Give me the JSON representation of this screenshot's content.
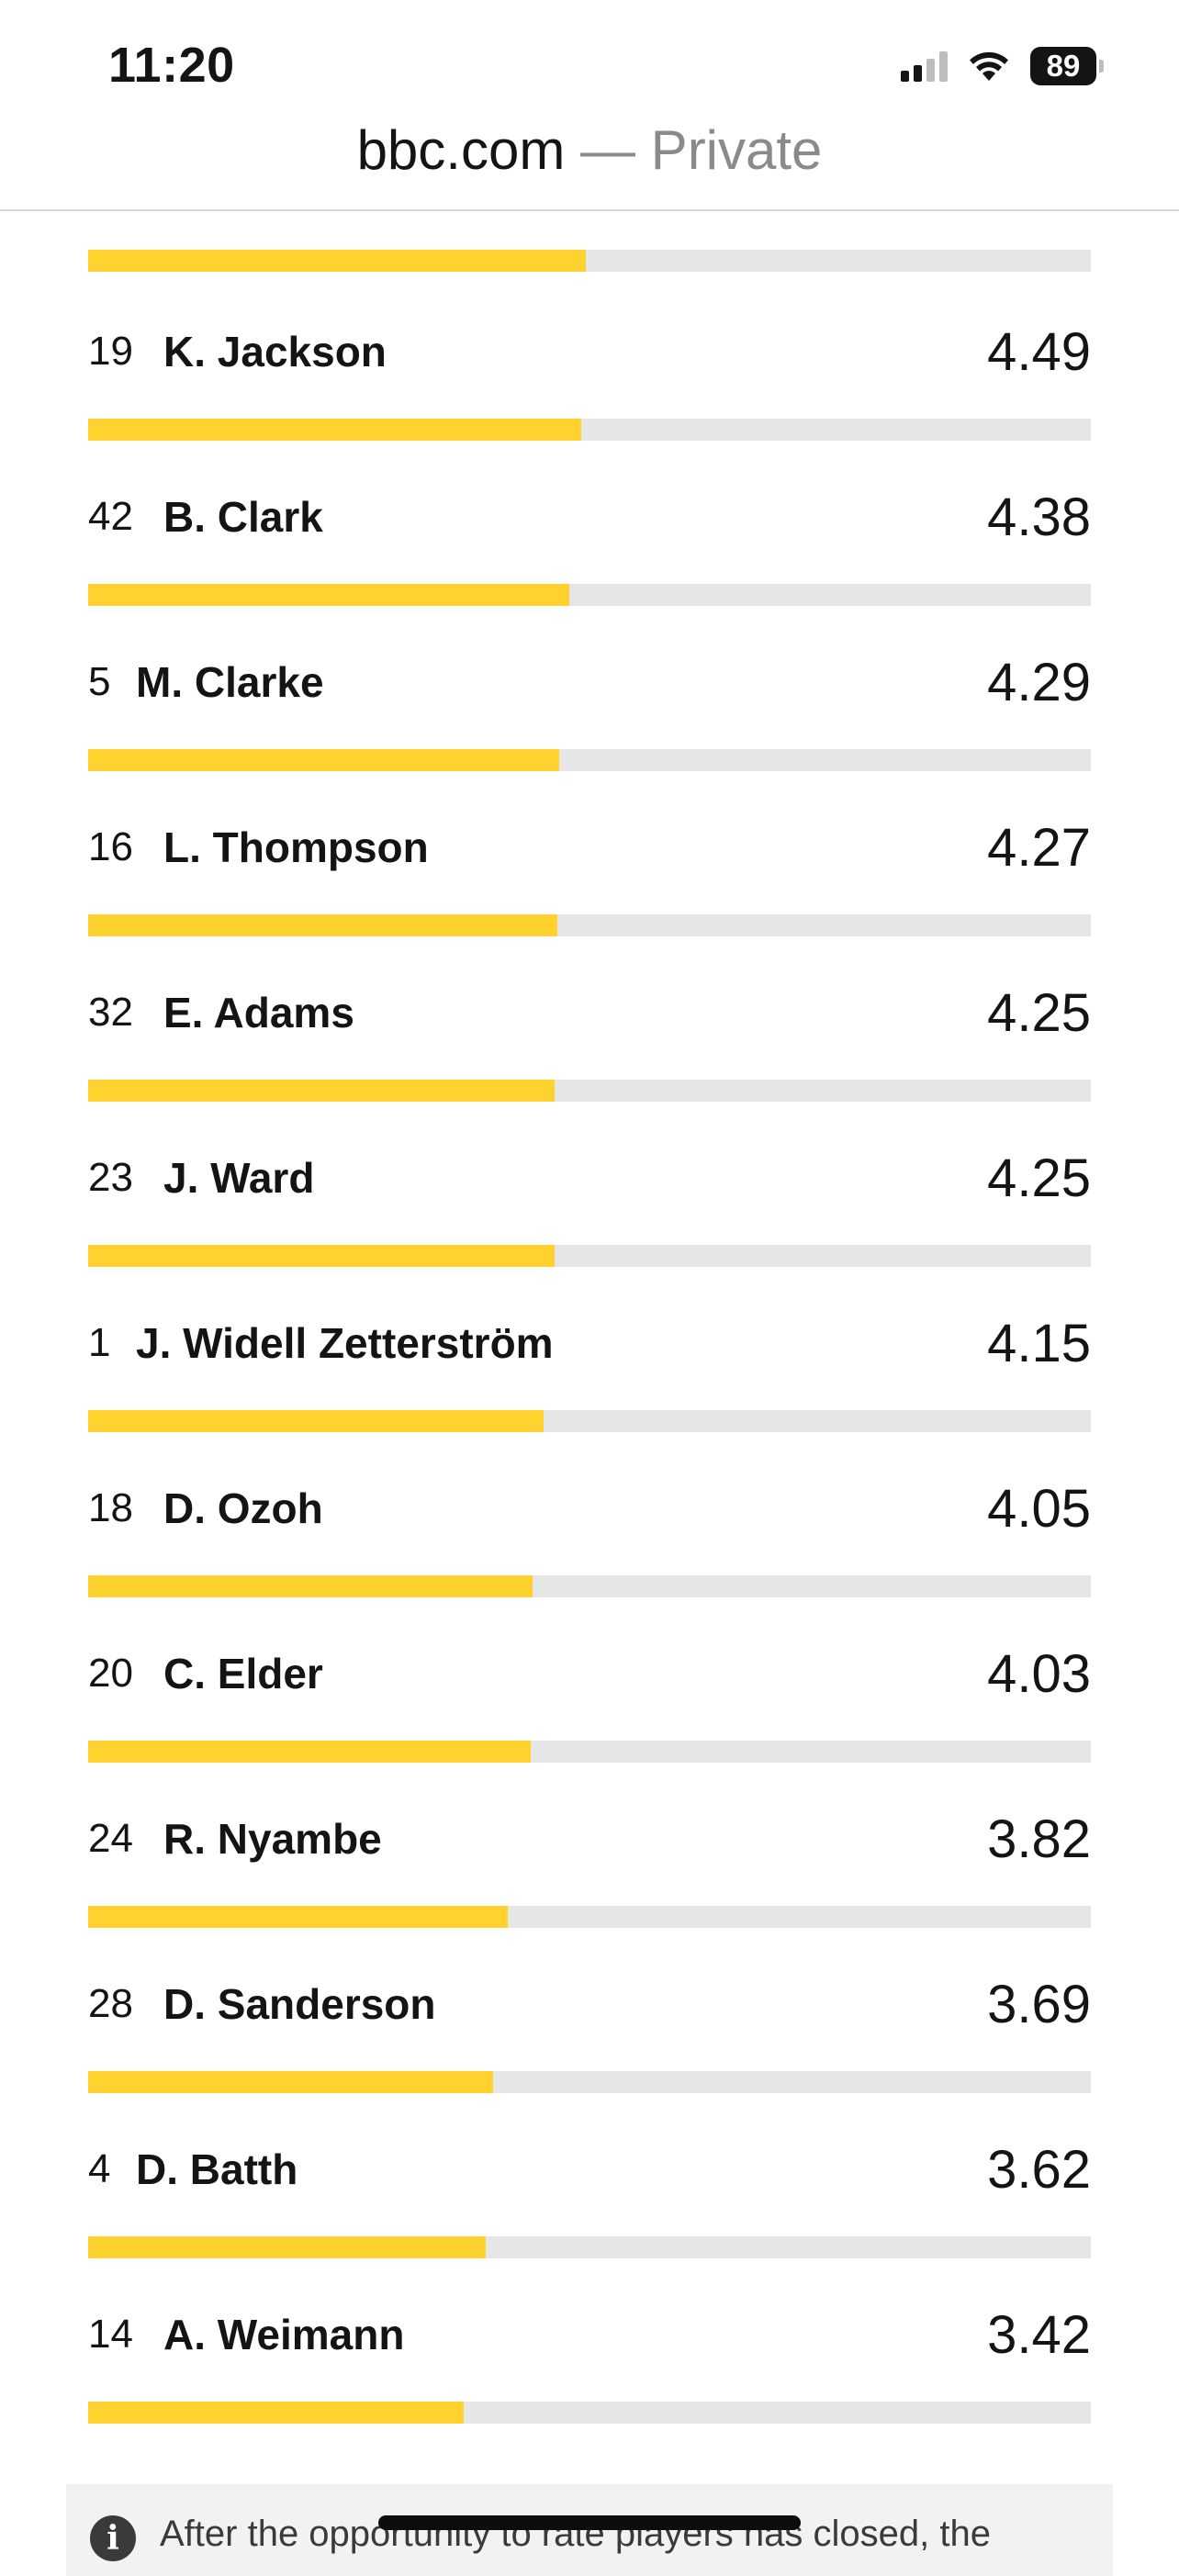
{
  "status_bar": {
    "time": "11:20",
    "battery": "89",
    "signal_icon": "cellular-signal-icon",
    "wifi_icon": "wifi-icon"
  },
  "address_bar": {
    "domain": "bbc.com",
    "separator": " — ",
    "mode": "Private"
  },
  "colors": {
    "bar_fill": "#ffd230",
    "bar_track": "#e6e6e6"
  },
  "rating_scale_max": 10,
  "partial_row": {
    "rating": 4.53
  },
  "players": [
    {
      "number": "19",
      "name": "K. Jackson",
      "rating": "4.49"
    },
    {
      "number": "42",
      "name": "B. Clark",
      "rating": "4.38"
    },
    {
      "number": "5",
      "name": "M. Clarke",
      "rating": "4.29"
    },
    {
      "number": "16",
      "name": "L. Thompson",
      "rating": "4.27"
    },
    {
      "number": "32",
      "name": "E. Adams",
      "rating": "4.25"
    },
    {
      "number": "23",
      "name": "J. Ward",
      "rating": "4.25"
    },
    {
      "number": "1",
      "name": "J. Widell Zetterström",
      "rating": "4.15"
    },
    {
      "number": "18",
      "name": "D. Ozoh",
      "rating": "4.05"
    },
    {
      "number": "20",
      "name": "C. Elder",
      "rating": "4.03"
    },
    {
      "number": "24",
      "name": "R. Nyambe",
      "rating": "3.82"
    },
    {
      "number": "28",
      "name": "D. Sanderson",
      "rating": "3.69"
    },
    {
      "number": "4",
      "name": "D. Batth",
      "rating": "3.62"
    },
    {
      "number": "14",
      "name": "A. Weimann",
      "rating": "3.42"
    }
  ],
  "notice": {
    "icon": "info-icon",
    "text": "After the opportunity to rate players has closed, the"
  }
}
